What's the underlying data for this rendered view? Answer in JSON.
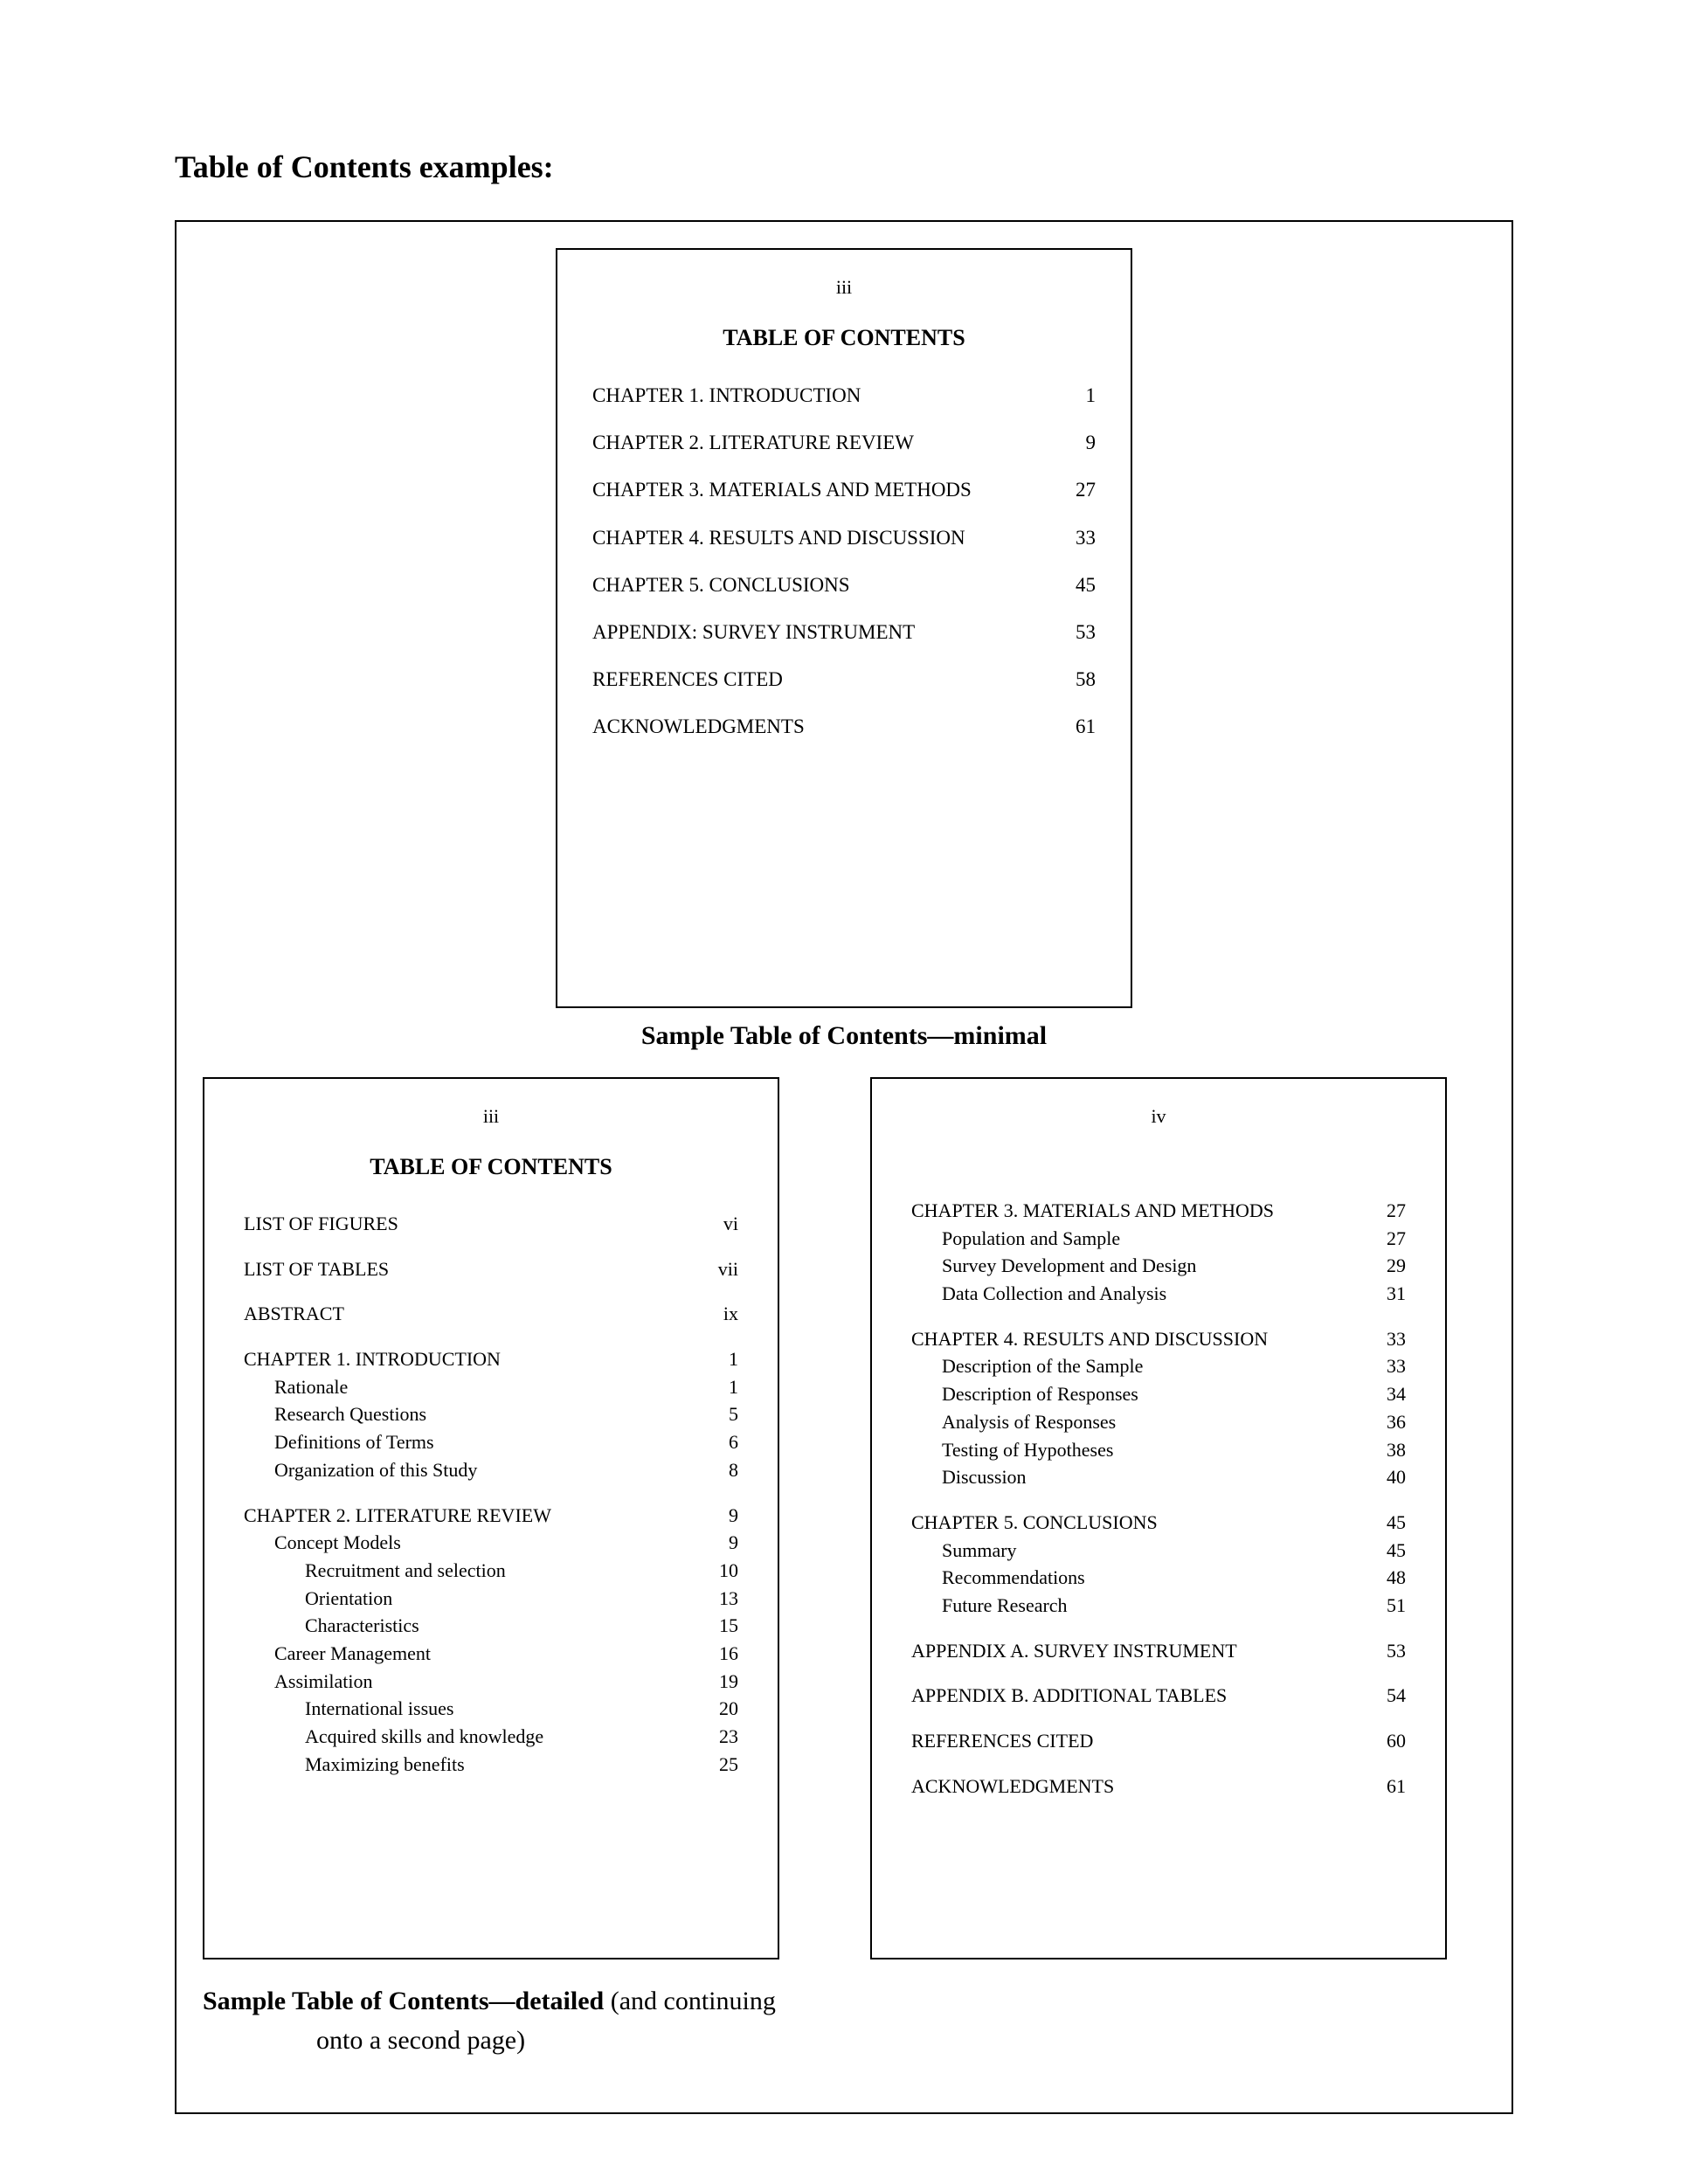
{
  "heading": "Table of Contents examples:",
  "minimal": {
    "roman": "iii",
    "title": "TABLE OF CONTENTS",
    "entries": [
      {
        "label": "CHAPTER 1.  INTRODUCTION",
        "page": "1"
      },
      {
        "label": "CHAPTER 2.  LITERATURE REVIEW",
        "page": "9"
      },
      {
        "label": "CHAPTER 3.  MATERIALS AND METHODS",
        "page": "27"
      },
      {
        "label": "CHAPTER 4.  RESULTS AND DISCUSSION",
        "page": "33"
      },
      {
        "label": "CHAPTER 5.  CONCLUSIONS",
        "page": "45"
      },
      {
        "label": "APPENDIX:  SURVEY INSTRUMENT",
        "page": "53"
      },
      {
        "label": "REFERENCES CITED",
        "page": "58"
      },
      {
        "label": "ACKNOWLEDGMENTS",
        "page": "61"
      }
    ],
    "caption": "Sample Table of Contents—minimal"
  },
  "detailed": {
    "left": {
      "roman": "iii",
      "title": "TABLE OF CONTENTS",
      "blocks": [
        [
          {
            "label": "LIST OF FIGURES",
            "page": "vi",
            "level": 0
          }
        ],
        [
          {
            "label": "LIST OF TABLES",
            "page": "vii",
            "level": 0
          }
        ],
        [
          {
            "label": "ABSTRACT",
            "page": "ix",
            "level": 0
          }
        ],
        [
          {
            "label": "CHAPTER 1.  INTRODUCTION",
            "page": "1",
            "level": 0
          },
          {
            "label": "Rationale",
            "page": "1",
            "level": 1
          },
          {
            "label": "Research Questions",
            "page": "5",
            "level": 1
          },
          {
            "label": "Definitions of Terms",
            "page": "6",
            "level": 1
          },
          {
            "label": "Organization of this Study",
            "page": "8",
            "level": 1
          }
        ],
        [
          {
            "label": "CHAPTER 2.  LITERATURE REVIEW",
            "page": "9",
            "level": 0
          },
          {
            "label": "Concept Models",
            "page": "9",
            "level": 1
          },
          {
            "label": "Recruitment and selection",
            "page": "10",
            "level": 2
          },
          {
            "label": "Orientation",
            "page": "13",
            "level": 2
          },
          {
            "label": "Characteristics",
            "page": "15",
            "level": 2
          },
          {
            "label": "Career Management",
            "page": "16",
            "level": 1
          },
          {
            "label": "Assimilation",
            "page": "19",
            "level": 1
          },
          {
            "label": "International issues",
            "page": "20",
            "level": 2
          },
          {
            "label": "Acquired skills and knowledge",
            "page": "23",
            "level": 2
          },
          {
            "label": "Maximizing benefits",
            "page": "25",
            "level": 2
          }
        ]
      ]
    },
    "right": {
      "roman": "iv",
      "blocks": [
        [
          {
            "label": "CHAPTER 3.  MATERIALS AND METHODS",
            "page": "27",
            "level": 0
          },
          {
            "label": "Population and Sample",
            "page": "27",
            "level": 1
          },
          {
            "label": "Survey Development and Design",
            "page": "29",
            "level": 1
          },
          {
            "label": "Data Collection and Analysis",
            "page": "31",
            "level": 1
          }
        ],
        [
          {
            "label": "CHAPTER 4.  RESULTS AND DISCUSSION",
            "page": "33",
            "level": 0
          },
          {
            "label": "Description of the Sample",
            "page": "33",
            "level": 1
          },
          {
            "label": "Description of Responses",
            "page": "34",
            "level": 1
          },
          {
            "label": "Analysis of Responses",
            "page": "36",
            "level": 1
          },
          {
            "label": "Testing of Hypotheses",
            "page": "38",
            "level": 1
          },
          {
            "label": "Discussion",
            "page": "40",
            "level": 1
          }
        ],
        [
          {
            "label": "CHAPTER 5.  CONCLUSIONS",
            "page": "45",
            "level": 0
          },
          {
            "label": "Summary",
            "page": "45",
            "level": 1
          },
          {
            "label": "Recommendations",
            "page": "48",
            "level": 1
          },
          {
            "label": "Future Research",
            "page": "51",
            "level": 1
          }
        ],
        [
          {
            "label": "APPENDIX A.  SURVEY INSTRUMENT",
            "page": "53",
            "level": 0
          }
        ],
        [
          {
            "label": "APPENDIX B.  ADDITIONAL TABLES",
            "page": "54",
            "level": 0
          }
        ],
        [
          {
            "label": "REFERENCES CITED",
            "page": "60",
            "level": 0
          }
        ],
        [
          {
            "label": "ACKNOWLEDGMENTS",
            "page": "61",
            "level": 0
          }
        ]
      ]
    },
    "caption_bold": "Sample Table of Contents—detailed",
    "caption_rest": " (and continuing",
    "caption_line2": "onto a second page)"
  }
}
